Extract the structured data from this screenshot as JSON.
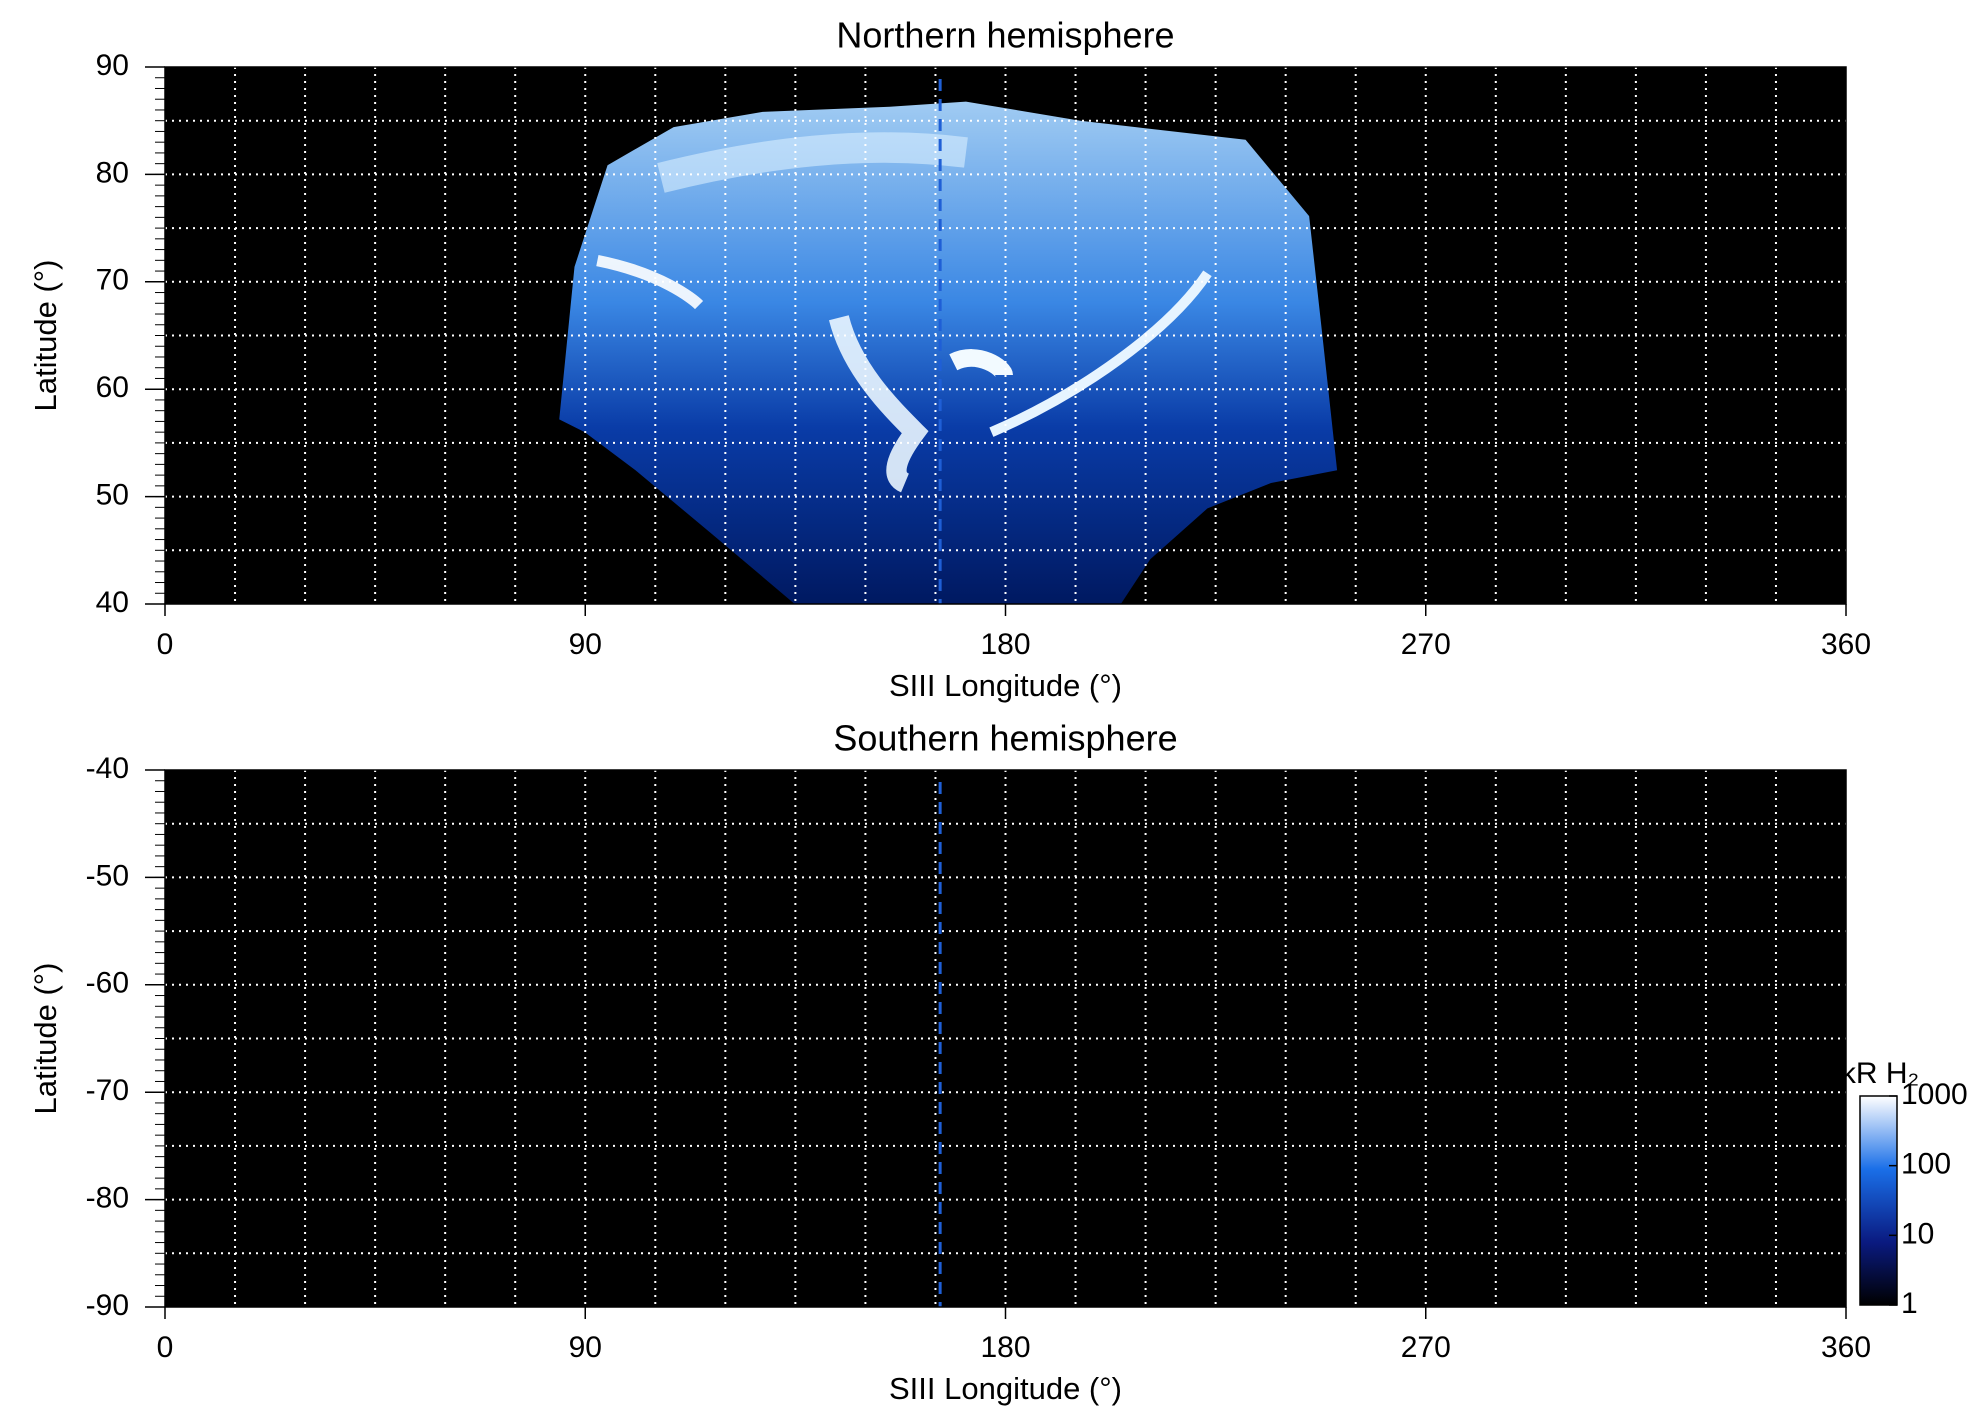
{
  "chart_data": [
    {
      "type": "heatmap",
      "title": "Northern hemisphere",
      "xlabel": "SIII Longitude (°)",
      "ylabel": "Latitude (°)",
      "xlim": [
        0,
        360
      ],
      "xticks": [
        0,
        90,
        180,
        270,
        360
      ],
      "xgrid": [
        15,
        30,
        45,
        60,
        75,
        90,
        105,
        120,
        135,
        150,
        165,
        180,
        195,
        210,
        225,
        240,
        255,
        270,
        285,
        300,
        315,
        330,
        345
      ],
      "ylim": [
        40,
        90
      ],
      "yticks": [
        40,
        50,
        60,
        70,
        80,
        90
      ],
      "ygrid": [
        45,
        50,
        55,
        60,
        65,
        70,
        75,
        80,
        85
      ],
      "reference_line_x": 166,
      "reference_line_color": "#1f5fd6",
      "grid": true
    },
    {
      "type": "heatmap",
      "title": "Southern hemisphere",
      "xlabel": "SIII Longitude (°)",
      "ylabel": "Latitude (°)",
      "xlim": [
        0,
        360
      ],
      "xticks": [
        0,
        90,
        180,
        270,
        360
      ],
      "xgrid": [
        15,
        30,
        45,
        60,
        75,
        90,
        105,
        120,
        135,
        150,
        165,
        180,
        195,
        210,
        225,
        240,
        255,
        270,
        285,
        300,
        315,
        330,
        345
      ],
      "ylim": [
        -90,
        -40
      ],
      "yticks": [
        -90,
        -80,
        -70,
        -60,
        -50,
        -40
      ],
      "ygrid": [
        -85,
        -80,
        -75,
        -70,
        -65,
        -60,
        -55,
        -50,
        -45
      ],
      "reference_line_x": 166,
      "reference_line_color": "#1f5fd6",
      "grid": true,
      "colorbar": {
        "label": "kR H₂",
        "lim": [
          1,
          1000
        ],
        "ticks": [
          1,
          10,
          100,
          1000
        ],
        "log": true
      }
    }
  ]
}
